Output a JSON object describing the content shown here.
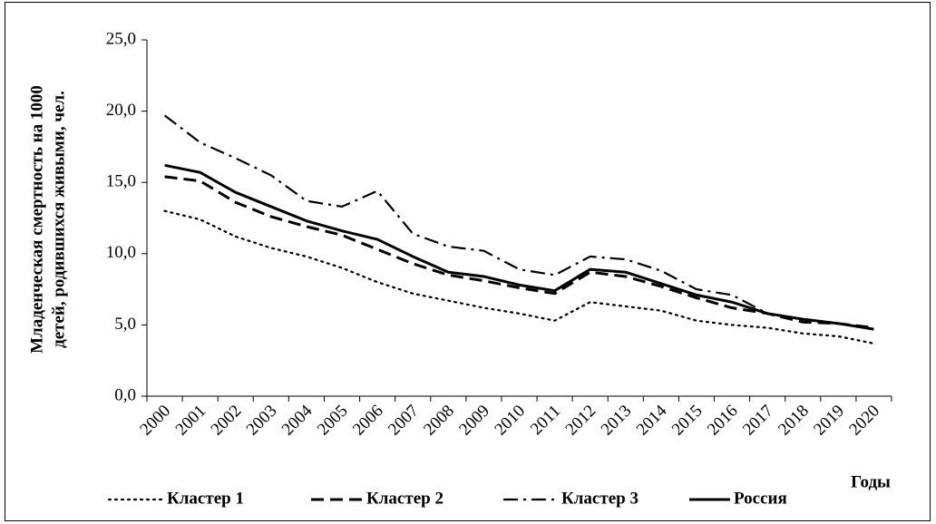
{
  "chart_data": {
    "type": "line",
    "ylabel": [
      "Младенческая смертность на 1000",
      "детей, родившихся живыми, чел."
    ],
    "xlabel": "Годы",
    "categories": [
      "2000",
      "2001",
      "2002",
      "2003",
      "2004",
      "2005",
      "2006",
      "2007",
      "2008",
      "2009",
      "2010",
      "2011",
      "2012",
      "2013",
      "2014",
      "2015",
      "2016",
      "2017",
      "2018",
      "2019",
      "2020"
    ],
    "series": [
      {
        "name": "Кластер 1",
        "color": "#000000",
        "style": "dotted",
        "values": [
          13.0,
          12.4,
          11.2,
          10.4,
          9.8,
          9.0,
          8.0,
          7.2,
          6.7,
          6.2,
          5.8,
          5.3,
          6.6,
          6.3,
          6.0,
          5.3,
          5.0,
          4.8,
          4.4,
          4.2,
          3.7
        ]
      },
      {
        "name": "Кластер 2",
        "color": "#000000",
        "style": "dashed",
        "values": [
          15.4,
          15.1,
          13.6,
          12.6,
          11.9,
          11.3,
          10.3,
          9.3,
          8.5,
          8.1,
          7.6,
          7.2,
          8.7,
          8.4,
          7.7,
          6.9,
          6.2,
          5.8,
          5.2,
          5.1,
          4.8
        ]
      },
      {
        "name": "Кластер 3",
        "color": "#000000",
        "style": "dashdot",
        "values": [
          19.7,
          17.8,
          16.7,
          15.5,
          13.7,
          13.3,
          14.4,
          11.4,
          10.5,
          10.2,
          8.9,
          8.5,
          9.8,
          9.6,
          8.8,
          7.5,
          7.1,
          5.8,
          5.4,
          5.1,
          4.7
        ]
      },
      {
        "name": "Россия",
        "color": "#000000",
        "style": "solid",
        "values": [
          16.2,
          15.7,
          14.3,
          13.3,
          12.3,
          11.6,
          11.0,
          9.8,
          8.7,
          8.4,
          7.8,
          7.4,
          8.9,
          8.7,
          7.9,
          7.1,
          6.6,
          5.8,
          5.4,
          5.1,
          4.7
        ]
      }
    ],
    "ylim": [
      0,
      25
    ],
    "yticks": [
      {
        "value": 0,
        "label": "0,0"
      },
      {
        "value": 5,
        "label": "5,0"
      },
      {
        "value": 10,
        "label": "10,0"
      },
      {
        "value": 15,
        "label": "15,0"
      },
      {
        "value": 20,
        "label": "20,0"
      },
      {
        "value": 25,
        "label": "25,0"
      }
    ],
    "legend": "bottom"
  }
}
